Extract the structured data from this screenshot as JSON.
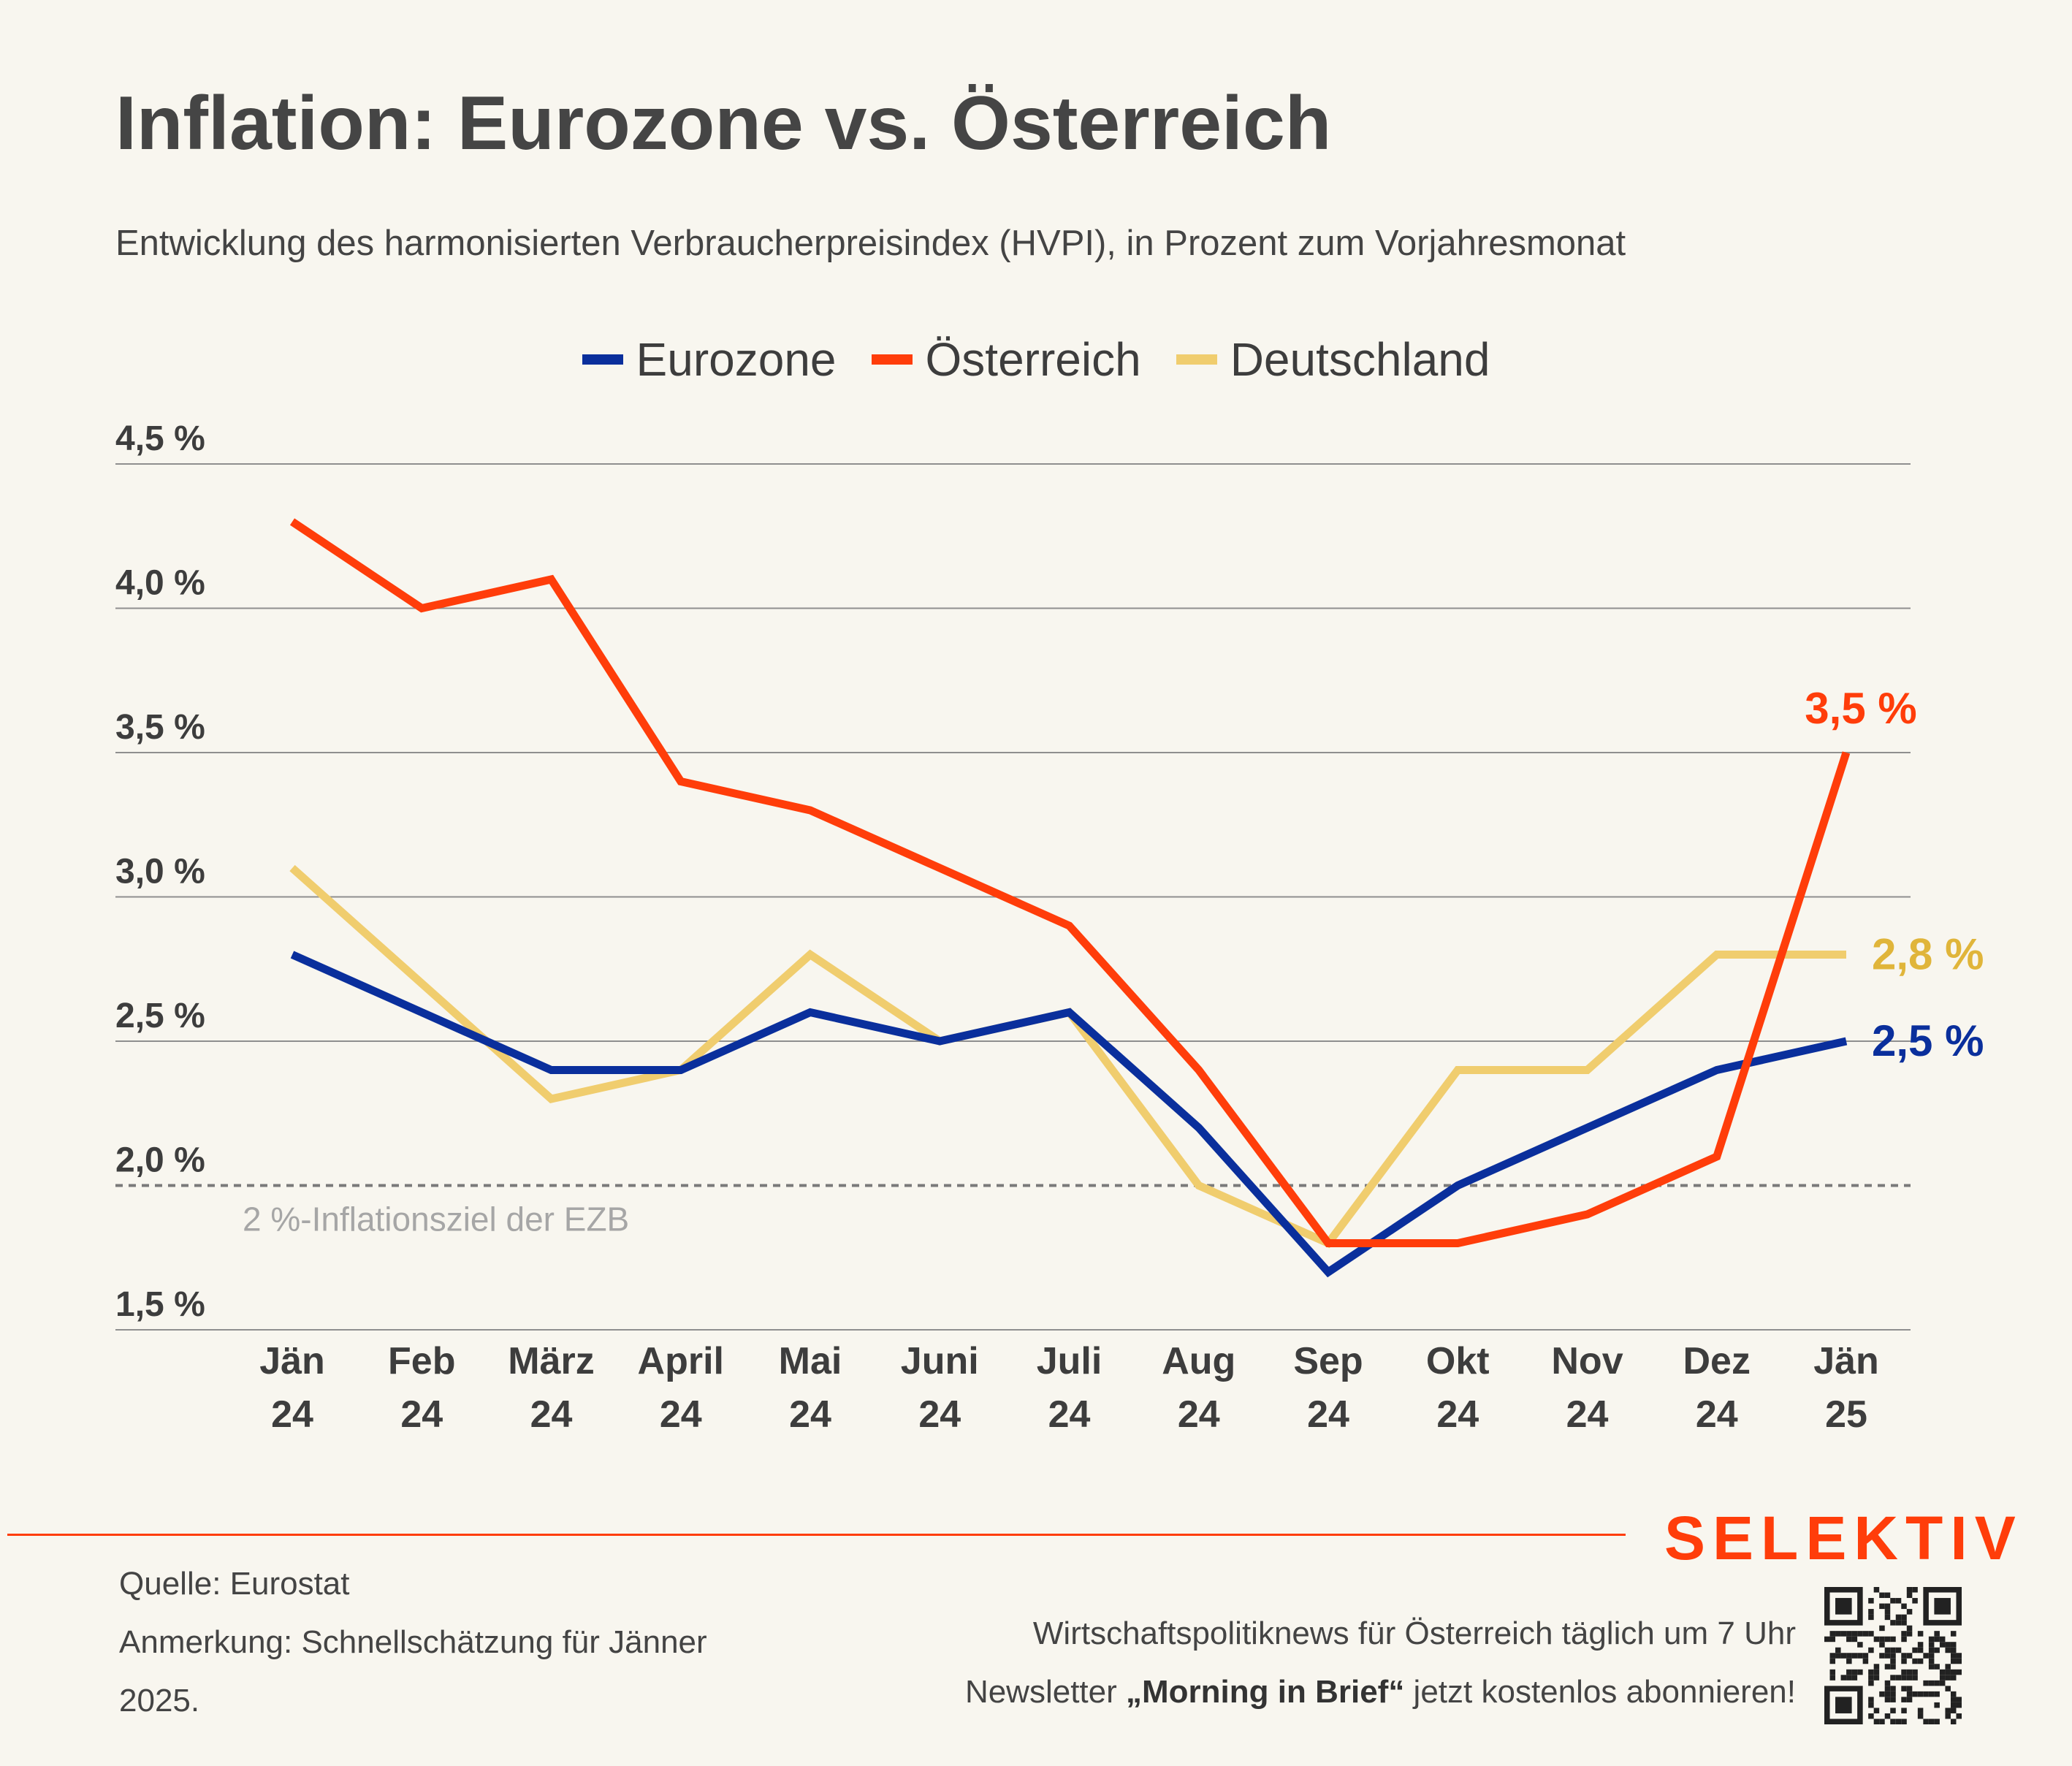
{
  "header": {
    "title": "Inflation: Eurozone vs. Österreich",
    "subtitle": "Entwicklung des harmonisierten Verbraucherpreisindex (HVPI), in Prozent zum Vorjahresmonat"
  },
  "legend": [
    {
      "label": "Eurozone",
      "color": "#0a2f9c"
    },
    {
      "label": "Österreich",
      "color": "#ff3d0a"
    },
    {
      "label": "Deutschland",
      "color": "#f0cd6e"
    }
  ],
  "chart_data": {
    "type": "line",
    "title": "Inflation: Eurozone vs. Österreich",
    "subtitle": "Entwicklung des harmonisierten Verbraucherpreisindex (HVPI), in Prozent zum Vorjahresmonat",
    "categories": [
      [
        "Jän",
        "24"
      ],
      [
        "Feb",
        "24"
      ],
      [
        "März",
        "24"
      ],
      [
        "April",
        "24"
      ],
      [
        "Mai",
        "24"
      ],
      [
        "Juni",
        "24"
      ],
      [
        "Juli",
        "24"
      ],
      [
        "Aug",
        "24"
      ],
      [
        "Sep",
        "24"
      ],
      [
        "Okt",
        "24"
      ],
      [
        "Nov",
        "24"
      ],
      [
        "Dez",
        "24"
      ],
      [
        "Jän",
        "25"
      ]
    ],
    "series": [
      {
        "name": "Eurozone",
        "color": "#0a2f9c",
        "values": [
          2.8,
          2.6,
          2.4,
          2.4,
          2.6,
          2.5,
          2.6,
          2.2,
          1.7,
          2.0,
          2.2,
          2.4,
          2.5
        ],
        "end_label": "2,5 %"
      },
      {
        "name": "Österreich",
        "color": "#ff3d0a",
        "values": [
          4.3,
          4.0,
          4.1,
          3.4,
          3.3,
          3.1,
          2.9,
          2.4,
          1.8,
          1.8,
          1.9,
          2.1,
          3.5
        ],
        "end_label": "3,5 %"
      },
      {
        "name": "Deutschland",
        "color": "#f0cd6e",
        "values": [
          3.1,
          2.7,
          2.3,
          2.4,
          2.8,
          2.5,
          2.6,
          2.0,
          1.8,
          2.4,
          2.4,
          2.8,
          2.8
        ],
        "end_label": "2,8 %"
      }
    ],
    "y_ticks": [
      {
        "value": 4.5,
        "label": "4,5 %"
      },
      {
        "value": 4.0,
        "label": "4,0 %"
      },
      {
        "value": 3.5,
        "label": "3,5 %"
      },
      {
        "value": 3.0,
        "label": "3,0 %"
      },
      {
        "value": 2.5,
        "label": "2,5 %"
      },
      {
        "value": 2.0,
        "label": "2,0 %"
      },
      {
        "value": 1.5,
        "label": "1,5 %"
      }
    ],
    "ylim": [
      1.5,
      4.5
    ],
    "reference_line": {
      "value": 2.0,
      "label": "2 %-Inflationsziel der EZB",
      "color": "#7a7a7a"
    },
    "grid": true,
    "legend_position": "top-center"
  },
  "footer": {
    "brand": "SELEKTIV",
    "source": "Quelle: Eurostat",
    "note": "Anmerkung: Schnellschätzung für Jänner 2025.",
    "promo_line1": "Wirtschaftspolitiknews für Österreich täglich um 7 Uhr",
    "promo_prefix": "Newsletter ",
    "promo_bold": "„Morning in Brief“",
    "promo_suffix": " jetzt kostenlos abonnieren!"
  }
}
